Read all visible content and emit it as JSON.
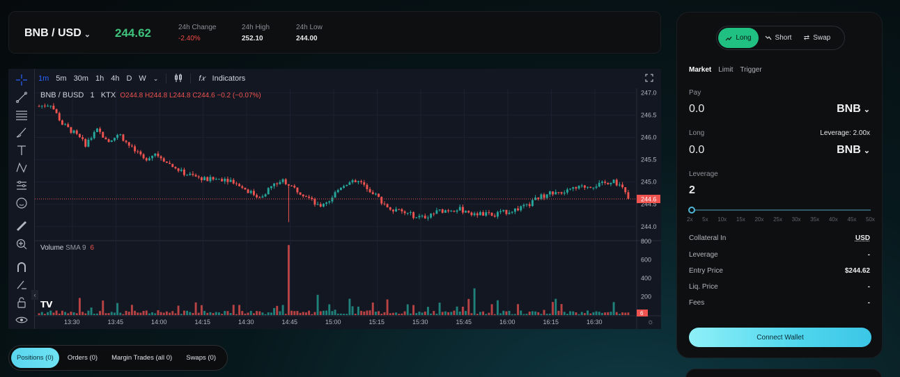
{
  "ticker": {
    "pair": "BNB / USD",
    "last_price": "244.62",
    "last_price_color": "#3fc27c",
    "stats": [
      {
        "label": "24h Change",
        "value": "-2.40%"
      },
      {
        "label": "24h High",
        "value": "252.10"
      },
      {
        "label": "24h Low",
        "value": "244.00"
      }
    ]
  },
  "chart_toolbar": {
    "timeframes": [
      "1m",
      "5m",
      "30m",
      "1h",
      "4h",
      "D",
      "W"
    ],
    "active_timeframe": "1m",
    "indicators_label": "Indicators"
  },
  "chart_legend": {
    "symbol": "BNB / BUSD",
    "interval": "1",
    "exchange": "KTX",
    "ohlc": "O244.8 H244.8 L244.8 C244.6 −0.2 (−0.07%)"
  },
  "volume_legend": {
    "label": "Volume",
    "sma": "SMA 9",
    "value": "6"
  },
  "chart_data": {
    "type": "candlestick",
    "price_axis": {
      "ticks": [
        "247.0",
        "246.5",
        "246.0",
        "245.5",
        "245.0",
        "244.5",
        "244.0"
      ],
      "last_price_label": "244.6"
    },
    "volume_axis": {
      "ticks": [
        "800",
        "600",
        "400",
        "200"
      ],
      "last_label": "6"
    },
    "time_axis": [
      "13:30",
      "13:45",
      "14:00",
      "14:15",
      "14:30",
      "14:45",
      "15:00",
      "15:15",
      "15:30",
      "15:45",
      "16:00",
      "16:15",
      "16:30"
    ],
    "up_color": "#26a69a",
    "down_color": "#ef5350",
    "price_ylim": [
      243.7,
      247.1
    ],
    "volume_ylim": [
      0,
      800
    ],
    "waypoints": [
      [
        0,
        246.7
      ],
      [
        4,
        246.75
      ],
      [
        8,
        246.3
      ],
      [
        12,
        246.1
      ],
      [
        16,
        245.85
      ],
      [
        20,
        246.15
      ],
      [
        24,
        245.95
      ],
      [
        28,
        246.05
      ],
      [
        32,
        245.75
      ],
      [
        36,
        245.5
      ],
      [
        40,
        245.65
      ],
      [
        44,
        245.45
      ],
      [
        48,
        245.25
      ],
      [
        52,
        245.15
      ],
      [
        58,
        245.05
      ],
      [
        64,
        245.08
      ],
      [
        68,
        245.0
      ],
      [
        72,
        244.8
      ],
      [
        76,
        244.65
      ],
      [
        80,
        244.9
      ],
      [
        84,
        245.05
      ],
      [
        88,
        244.85
      ],
      [
        92,
        244.7
      ],
      [
        96,
        244.45
      ],
      [
        100,
        244.6
      ],
      [
        104,
        244.9
      ],
      [
        108,
        245.05
      ],
      [
        112,
        244.95
      ],
      [
        116,
        244.7
      ],
      [
        120,
        244.45
      ],
      [
        126,
        244.3
      ],
      [
        132,
        244.2
      ],
      [
        138,
        244.35
      ],
      [
        144,
        244.4
      ],
      [
        150,
        244.3
      ],
      [
        156,
        244.25
      ],
      [
        162,
        244.35
      ],
      [
        168,
        244.45
      ],
      [
        172,
        244.65
      ],
      [
        176,
        244.75
      ],
      [
        182,
        244.8
      ],
      [
        188,
        244.9
      ],
      [
        194,
        244.95
      ],
      [
        198,
        245.05
      ],
      [
        201,
        244.85
      ],
      [
        203,
        244.62
      ]
    ],
    "volume_spikes": [
      [
        86,
        760
      ],
      [
        84,
        110
      ],
      [
        69,
        110
      ],
      [
        96,
        220
      ],
      [
        150,
        290
      ],
      [
        180,
        120
      ],
      [
        120,
        170
      ]
    ]
  },
  "order_panel": {
    "mode_tabs": [
      "Long",
      "Short",
      "Swap"
    ],
    "active_mode": "Long",
    "order_types": [
      "Market",
      "Limit",
      "Trigger"
    ],
    "active_order_type": "Market",
    "pay": {
      "label": "Pay",
      "value": "0.0",
      "asset": "BNB"
    },
    "long": {
      "label": "Long",
      "value": "0.0",
      "asset": "BNB",
      "leverage_info": "Leverage: 2.00x"
    },
    "leverage": {
      "label": "Leverage",
      "value": "2",
      "ticks": [
        "2x",
        "5x",
        "10x",
        "15x",
        "20x",
        "25x",
        "30x",
        "35x",
        "40x",
        "45x",
        "50x"
      ]
    },
    "info": [
      {
        "key": "Collateral In",
        "value": "USD"
      },
      {
        "key": "Leverage",
        "value": "-"
      },
      {
        "key": "Entry Price",
        "value": "$244.62"
      },
      {
        "key": "Liq. Price",
        "value": "-"
      },
      {
        "key": "Fees",
        "value": "-"
      }
    ],
    "connect_label": "Connect Wallet"
  },
  "bottom_tabs": [
    "Positions (0)",
    "Orders (0)",
    "Margin Trades (all 0)",
    "Swaps (0)"
  ],
  "active_bottom_tab": "Positions (0)"
}
